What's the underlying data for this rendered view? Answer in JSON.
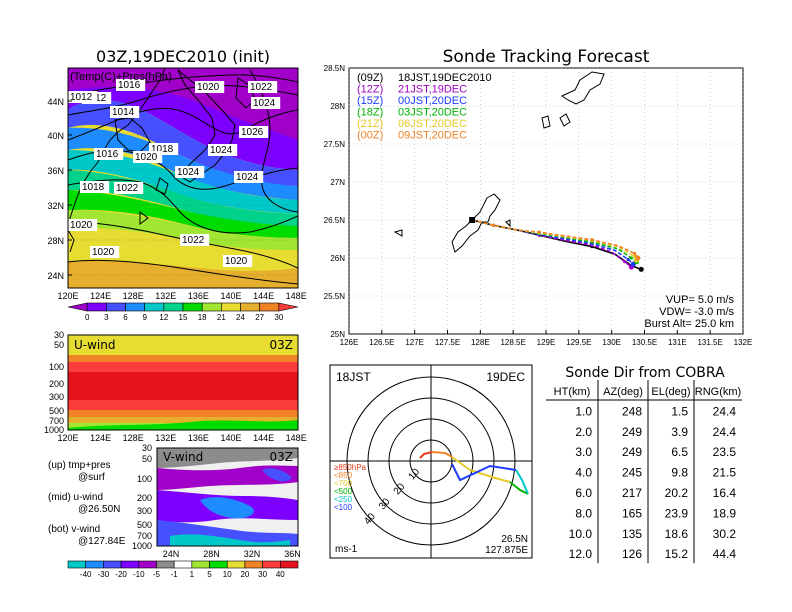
{
  "map": {
    "title": "03Z,19DEC2010 (init)",
    "inset_label": "(Temp(C)+Pres(hPa)",
    "lat_ticks": [
      "44N",
      "40N",
      "36N",
      "32N",
      "28N",
      "24N"
    ],
    "lon_ticks": [
      "120E",
      "124E",
      "128E",
      "132E",
      "136E",
      "140E",
      "144E",
      "148E"
    ],
    "isobars": [
      {
        "label": "1012"
      },
      {
        "label": "1016"
      },
      {
        "label": "1020"
      },
      {
        "label": "1022"
      },
      {
        "label": "1012"
      },
      {
        "label": "1014"
      },
      {
        "label": "1024"
      },
      {
        "label": "1026"
      },
      {
        "label": "1016"
      },
      {
        "label": "1018"
      },
      {
        "label": "1020"
      },
      {
        "label": "1024"
      },
      {
        "label": "1024"
      },
      {
        "label": "1024"
      },
      {
        "label": "1018"
      },
      {
        "label": "1022"
      },
      {
        "label": "1020"
      },
      {
        "label": "1022"
      },
      {
        "label": "1020"
      },
      {
        "label": "1020"
      }
    ],
    "colorbar_labels": [
      "0",
      "3",
      "6",
      "9",
      "12",
      "15",
      "18",
      "21",
      "24",
      "27",
      "30"
    ],
    "colorbar_colors": [
      "#a000c8",
      "#7d00ff",
      "#4650ff",
      "#1e8cff",
      "#00c8c8",
      "#00d28c",
      "#00dc00",
      "#a0e632",
      "#e6dc32",
      "#e6af2d",
      "#f08228",
      "#fa3c3c"
    ]
  },
  "uwind": {
    "title": "U-wind",
    "time": "03Z",
    "y_ticks": [
      "30",
      "50",
      "100",
      "200",
      "300",
      "500",
      "700",
      "1000"
    ],
    "x_ticks": [
      "120E",
      "124E",
      "128E",
      "132E",
      "136E",
      "140E",
      "144E",
      "148E"
    ]
  },
  "vwind": {
    "title": "V-wind",
    "time": "03Z",
    "y_ticks": [
      "30",
      "50",
      "100",
      "200",
      "300",
      "500",
      "700",
      "1000"
    ],
    "x_ticks": [
      "24N",
      "28N",
      "32N",
      "36N"
    ],
    "colorbar_labels": [
      "-40",
      "-30",
      "-20",
      "-10",
      "-5",
      "-1",
      "1",
      "5",
      "10",
      "20",
      "30",
      "40"
    ]
  },
  "legend_notes": {
    "up_1": "(up) tmp+pres",
    "up_2": "@surf",
    "mid_1": "(mid) u-wind",
    "mid_2": "@26.50N",
    "bot_1": "(bot) v-wind",
    "bot_2": "@127.84E"
  },
  "track": {
    "title": "Sonde Tracking Forecast",
    "lat_ticks": [
      "28.5N",
      "28N",
      "27.5N",
      "27N",
      "26.5N",
      "26N",
      "25.5N",
      "25N"
    ],
    "lon_ticks": [
      "126E",
      "126.5E",
      "127E",
      "127.5E",
      "128E",
      "128.5E",
      "129E",
      "129.5E",
      "130E",
      "130.5E",
      "131E",
      "131.5E",
      "132E"
    ],
    "legend": [
      {
        "z": "(09Z)",
        "jst": "18JST,19DEC2010",
        "color": "#000000"
      },
      {
        "z": "(12Z)",
        "jst": "21JST,19DEC",
        "color": "#a000c8"
      },
      {
        "z": "(15Z)",
        "jst": "00JST,20DEC",
        "color": "#1e3cff"
      },
      {
        "z": "(18Z)",
        "jst": "03JST,20DEC",
        "color": "#00b400"
      },
      {
        "z": "(21Z)",
        "jst": "06JST,20DEC",
        "color": "#e6c828"
      },
      {
        "z": "(00Z)",
        "jst": "09JST,20DEC",
        "color": "#f08228"
      }
    ],
    "vup": "VUP= 5.0 m/s",
    "vdw": "VDW= -3.0 m/s",
    "burst": "Burst Alt= 25.0 km"
  },
  "polar": {
    "time": "18JST",
    "date": "19DEC",
    "ring_labels": [
      "10",
      "20",
      "30",
      "40"
    ],
    "unit": "ms-1",
    "pos_lat": "26.5N",
    "pos_lon": "127.875E",
    "levels": [
      {
        "label": "≥850hPa",
        "color": "#e63c1e"
      },
      {
        "label": "<850",
        "color": "#f08228"
      },
      {
        "label": "<700",
        "color": "#e6c828"
      },
      {
        "label": "<500",
        "color": "#00b400"
      },
      {
        "label": "<250",
        "color": "#00c8c8"
      },
      {
        "label": "<100",
        "color": "#1e3cff"
      }
    ]
  },
  "sonde_dir": {
    "title": "Sonde Dir from COBRA",
    "headers": [
      "HT(km)",
      "AZ(deg)",
      "EL(deg)",
      "RNG(km)"
    ],
    "rows": [
      [
        "1.0",
        "248",
        "1.5",
        "24.4"
      ],
      [
        "2.0",
        "249",
        "3.9",
        "24.4"
      ],
      [
        "3.0",
        "249",
        "6.5",
        "23.5"
      ],
      [
        "4.0",
        "245",
        "9.8",
        "21.5"
      ],
      [
        "6.0",
        "217",
        "20.2",
        "16.4"
      ],
      [
        "8.0",
        "165",
        "23.9",
        "18.9"
      ],
      [
        "10.0",
        "135",
        "18.6",
        "30.2"
      ],
      [
        "12.0",
        "126",
        "15.2",
        "44.4"
      ]
    ]
  },
  "chart_data": [
    {
      "type": "heatmap",
      "title": "03Z,19DEC2010 (init)",
      "subtitle": "(Temp(C)+Pres(hPa)",
      "x_ticks": [
        "120E",
        "124E",
        "128E",
        "132E",
        "136E",
        "140E",
        "144E",
        "148E"
      ],
      "y_ticks": [
        "24N",
        "28N",
        "32N",
        "36N",
        "40N",
        "44N"
      ],
      "colorbar": [
        0,
        3,
        6,
        9,
        12,
        15,
        18,
        21,
        24,
        27,
        30
      ]
    },
    {
      "type": "line",
      "title": "Sonde Tracking Forecast",
      "xlim": [
        126,
        132
      ],
      "ylim": [
        25,
        28.5
      ],
      "series": [
        {
          "name": "(09Z) 18JST,19DEC2010",
          "points": [
            [
              127.875,
              26.5
            ],
            [
              128.2,
              26.43
            ],
            [
              128.55,
              26.37
            ],
            [
              128.9,
              26.3
            ],
            [
              129.3,
              26.22
            ],
            [
              129.7,
              26.15
            ],
            [
              130.05,
              26.05
            ],
            [
              130.3,
              25.9
            ],
            [
              130.45,
              25.85
            ]
          ]
        },
        {
          "name": "(12Z) 21JST,19DEC",
          "points": [
            [
              127.875,
              26.5
            ],
            [
              128.2,
              26.43
            ],
            [
              128.55,
              26.37
            ],
            [
              128.9,
              26.3
            ],
            [
              129.3,
              26.23
            ],
            [
              129.7,
              26.17
            ],
            [
              130.0,
              26.08
            ],
            [
              130.2,
              25.95
            ],
            [
              130.3,
              25.88
            ]
          ]
        },
        {
          "name": "(15Z) 00JST,20DEC",
          "points": [
            [
              127.875,
              26.5
            ],
            [
              128.2,
              26.43
            ],
            [
              128.55,
              26.37
            ],
            [
              128.9,
              26.31
            ],
            [
              129.3,
              26.25
            ],
            [
              129.7,
              26.19
            ],
            [
              130.05,
              26.1
            ],
            [
              130.25,
              25.98
            ],
            [
              130.33,
              25.92
            ]
          ]
        },
        {
          "name": "(18Z) 03JST,20DEC",
          "points": [
            [
              127.875,
              26.5
            ],
            [
              128.2,
              26.43
            ],
            [
              128.55,
              26.37
            ],
            [
              128.9,
              26.32
            ],
            [
              129.3,
              26.27
            ],
            [
              129.7,
              26.21
            ],
            [
              130.1,
              26.12
            ],
            [
              130.3,
              26.0
            ],
            [
              130.38,
              25.95
            ]
          ]
        },
        {
          "name": "(21Z) 06JST,20DEC",
          "points": [
            [
              127.875,
              26.5
            ],
            [
              128.2,
              26.43
            ],
            [
              128.55,
              26.37
            ],
            [
              128.9,
              26.33
            ],
            [
              129.3,
              26.28
            ],
            [
              129.7,
              26.23
            ],
            [
              130.1,
              26.15
            ],
            [
              130.35,
              26.02
            ],
            [
              130.38,
              25.97
            ]
          ]
        },
        {
          "name": "(00Z) 09JST,20DEC",
          "points": [
            [
              127.875,
              26.5
            ],
            [
              128.2,
              26.43
            ],
            [
              128.55,
              26.37
            ],
            [
              128.9,
              26.34
            ],
            [
              129.3,
              26.29
            ],
            [
              129.7,
              26.24
            ],
            [
              130.1,
              26.16
            ],
            [
              130.35,
              26.06
            ],
            [
              130.4,
              26.0
            ]
          ]
        }
      ]
    },
    {
      "type": "table",
      "title": "Sonde Dir from COBRA",
      "headers": [
        "HT(km)",
        "AZ(deg)",
        "EL(deg)",
        "RNG(km)"
      ],
      "rows": [
        [
          1.0,
          248,
          1.5,
          24.4
        ],
        [
          2.0,
          249,
          3.9,
          24.4
        ],
        [
          3.0,
          249,
          6.5,
          23.5
        ],
        [
          4.0,
          245,
          9.8,
          21.5
        ],
        [
          6.0,
          217,
          20.2,
          16.4
        ],
        [
          8.0,
          165,
          23.9,
          18.9
        ],
        [
          10.0,
          135,
          18.6,
          30.2
        ],
        [
          12.0,
          126,
          15.2,
          44.4
        ]
      ]
    }
  ]
}
